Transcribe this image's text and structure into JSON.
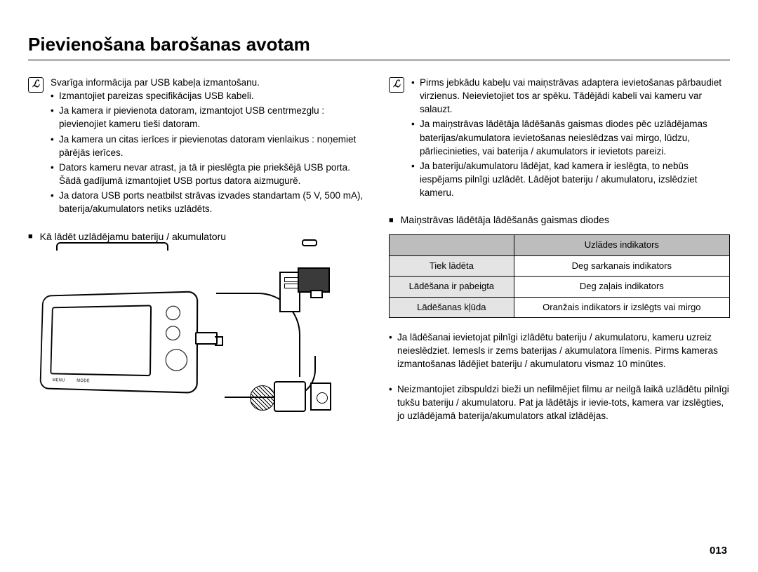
{
  "title": "Pievienošana barošanas avotam",
  "pageNumber": "013",
  "left": {
    "infoIntro": "Svarīga informācija par USB kabeļa izmantošanu.",
    "infoBullets": [
      "Izmantojiet pareizas specifikācijas USB kabeli.",
      "Ja kamera ir pievienota datoram, izmantojot USB centrmezglu : pievienojiet kameru tieši datoram.",
      "Ja kamera un citas ierīces ir pievienotas datoram vienlaikus : noņemiet pārējās ierīces.",
      "Dators kameru nevar atrast, ja tā ir pieslēgta pie priekšējā USB porta. Šādā gadījumā izmantojiet USB portus datora aizmugurē.",
      "Ja datora USB ports neatbilst strāvas izvades standartam (5 V, 500 mA), baterija/akumulators netiks uzlādēts."
    ],
    "chargeHeading": "Kā lādēt uzlādējamu bateriju / akumulatoru",
    "camBottomLabels": [
      "MENU",
      "MODE"
    ]
  },
  "right": {
    "infoBullets": [
      "Pirms jebkādu kabeļu vai maiņstrāvas adaptera ievietošanas pārbaudiet virzienus. Neievietojiet tos ar spēku. Tādējādi kabeli vai kameru var salauzt.",
      "Ja maiņstrāvas lādētāja lādēšanās gaismas diodes pēc uzlādējamas baterijas/akumulatora ievietošanas neieslēdzas vai mirgo, lūdzu, pārliecinieties, vai baterija / akumulators ir ievietots pareizi.",
      "Ja bateriju/akumulatoru lādējat, kad kamera ir ieslēgta, to nebūs iespējams pilnīgi uzlādēt. Lādējot bateriju / akumulatoru, izslēdziet kameru."
    ],
    "ledHeading": "Maiņstrāvas lādētāja lādēšanās gaismas diodes",
    "table": {
      "header": [
        "",
        "Uzlādes indikators"
      ],
      "rows": [
        [
          "Tiek lādēta",
          "Deg sarkanais indikators"
        ],
        [
          "Lādēšana ir pabeigta",
          "Deg zaļais indikators"
        ],
        [
          "Lādēšanas kļūda",
          "Oranžais indikators ir izslēgts vai mirgo"
        ]
      ]
    },
    "notes": [
      "Ja lādēšanai ievietojat pilnīgi izlādētu bateriju / akumulatoru, kameru uzreiz neieslēdziet. Iemesls ir zems baterijas / akumulatora līmenis. Pirms kameras izmantošanas lādējiet bateriju / akumulatoru vismaz 10 minūtes.",
      "Neizmantojiet zibspuldzi bieži un nefilmējiet filmu ar neilgā laikā uzlādētu pilnīgi tukšu bateriju / akumulatoru. Pat ja lādētājs ir ievie-tots, kamera var izslēgties, jo uzlādējamā baterija/akumulators atkal izlādējas."
    ]
  },
  "colors": {
    "tableHeaderBg": "#bdbdbd",
    "tableRowHeadBg": "#e4e4e4",
    "text": "#000000",
    "background": "#ffffff"
  }
}
